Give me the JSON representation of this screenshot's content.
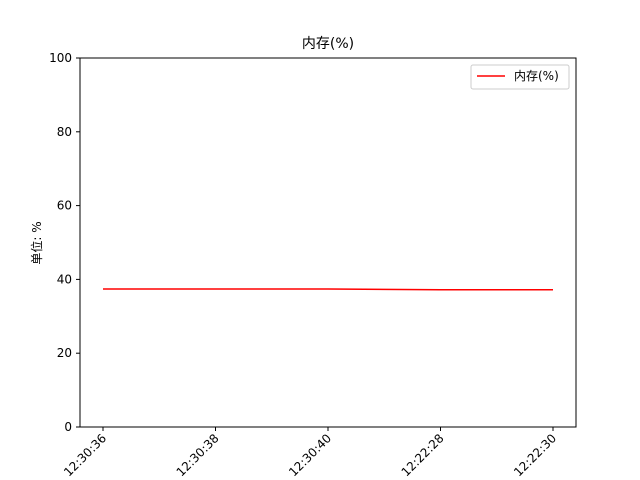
{
  "chart_data": {
    "type": "line",
    "title": "内存(%)",
    "xlabel": "",
    "ylabel": "单位: %",
    "categories": [
      "12:30:36",
      "12:30:38",
      "12:30:40",
      "12:22:28",
      "12:22:30"
    ],
    "ylim": [
      0,
      100
    ],
    "yticks": [
      "0",
      "20",
      "40",
      "60",
      "80",
      "100"
    ],
    "grid": false,
    "legend_position": "top-right",
    "series": [
      {
        "name": "内存(%)",
        "color": "#ff0000",
        "values": [
          37.4,
          37.4,
          37.4,
          37.2,
          37.2
        ]
      }
    ]
  }
}
